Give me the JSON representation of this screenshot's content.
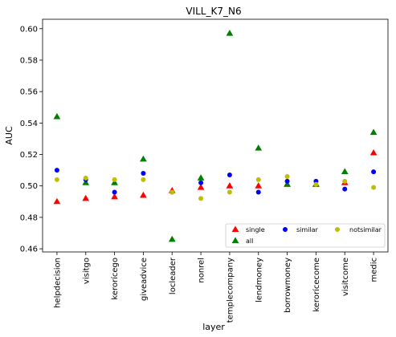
{
  "chart_data": {
    "type": "scatter",
    "title": "VILL_K7_N6",
    "xlabel": "layer",
    "ylabel": "AUC",
    "categories": [
      "helpdecision",
      "visitgo",
      "kerorícego",
      "giveadvice",
      "locleader",
      "nonrel",
      "templecompany",
      "lendmoney",
      "borrowmoney",
      "kerorícecome",
      "visitcome",
      "medic"
    ],
    "ylim": [
      0.458,
      0.606
    ],
    "yticks": [
      0.46,
      0.48,
      0.5,
      0.52,
      0.54,
      0.56,
      0.58,
      0.6
    ],
    "ytick_labels": [
      "0.46",
      "0.48",
      "0.50",
      "0.52",
      "0.54",
      "0.56",
      "0.58",
      "0.60"
    ],
    "grid": false,
    "legend_position": "bottom-right",
    "series": [
      {
        "name": "single",
        "marker": "triangle",
        "color": "#ff0000",
        "values": [
          0.49,
          0.492,
          0.493,
          0.494,
          0.497,
          0.499,
          0.5,
          0.5,
          0.501,
          0.501,
          0.502,
          0.521
        ]
      },
      {
        "name": "all",
        "marker": "triangle",
        "color": "#008000",
        "values": [
          0.544,
          0.502,
          0.502,
          0.517,
          0.466,
          0.505,
          0.597,
          0.524,
          0.501,
          0.501,
          0.509,
          0.534
        ]
      },
      {
        "name": "similar",
        "marker": "circle",
        "color": "#0000ff",
        "values": [
          0.51,
          0.504,
          0.496,
          0.508,
          0.496,
          0.502,
          0.507,
          0.496,
          0.503,
          0.503,
          0.498,
          0.509
        ]
      },
      {
        "name": "notsimilar",
        "marker": "circle",
        "color": "#bfbf00",
        "values": [
          0.504,
          0.505,
          0.504,
          0.504,
          0.496,
          0.492,
          0.496,
          0.504,
          0.506,
          0.501,
          0.503,
          0.499
        ]
      }
    ]
  }
}
